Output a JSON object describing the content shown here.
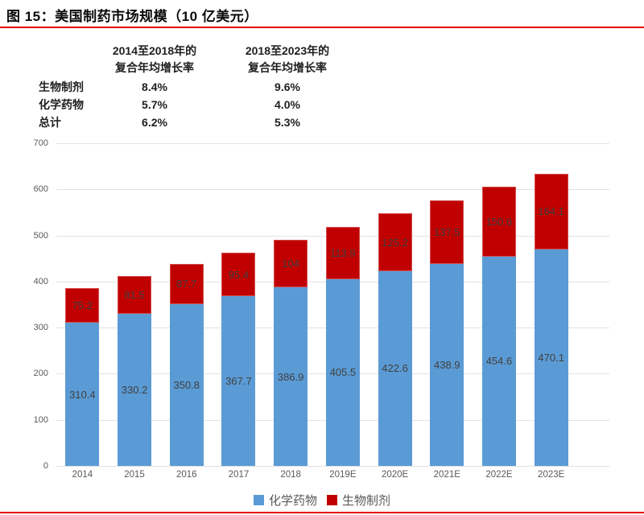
{
  "title": "图 15：美国制药市场规模（10 亿美元）",
  "cagr_table": {
    "columns": [
      {
        "line1": "2014至2018年的",
        "line2": "复合年均增长率"
      },
      {
        "line1": "2018至2023年的",
        "line2": "复合年均增长率"
      }
    ],
    "rows": [
      {
        "label": "生物制剂",
        "values": [
          "8.4%",
          "9.6%"
        ]
      },
      {
        "label": "化学药物",
        "values": [
          "5.7%",
          "4.0%"
        ]
      },
      {
        "label": "总计",
        "values": [
          "6.2%",
          "5.3%"
        ]
      }
    ]
  },
  "chart_data": {
    "type": "bar",
    "stacked": true,
    "title": "美国制药市场规模（10 亿美元）",
    "categories": [
      "2014",
      "2015",
      "2016",
      "2017",
      "2018",
      "2019E",
      "2020E",
      "2021E",
      "2022E",
      "2023E"
    ],
    "series": [
      {
        "name": "化学药物",
        "color": "#5b9bd5",
        "values": [
          310.4,
          330.2,
          350.8,
          367.7,
          386.9,
          405.5,
          422.6,
          438.9,
          454.6,
          470.1
        ]
      },
      {
        "name": "生物制剂",
        "color": "#c00000",
        "values": [
          75.2,
          81.5,
          87.7,
          95.4,
          104,
          113.9,
          125.2,
          137.5,
          150.6,
          164.1
        ]
      }
    ],
    "ylim": [
      0,
      700
    ],
    "y_ticks": [
      0,
      100,
      200,
      300,
      400,
      500,
      600,
      700
    ],
    "grid": true,
    "legend_position": "bottom",
    "data_labels": "center"
  },
  "colors": {
    "accent_rule": "#e60000",
    "grid": "#e2e2e2",
    "axis_text": "#595959",
    "data_label": "#404040"
  }
}
